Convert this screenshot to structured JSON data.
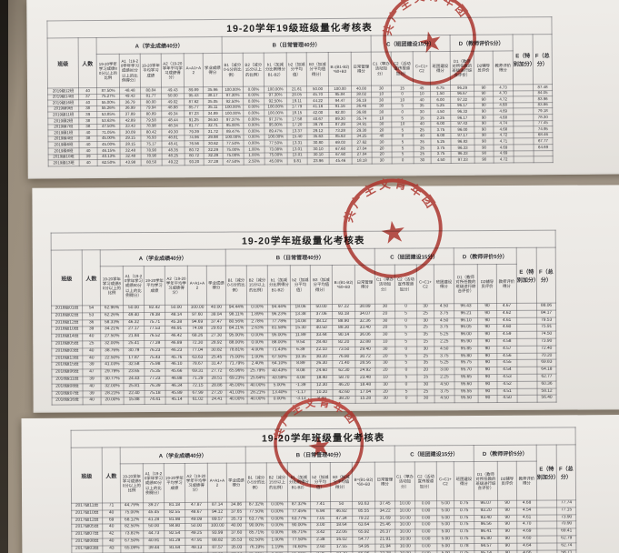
{
  "photo": {
    "background_color": "#a99d8c",
    "paper_color": "#edebe7",
    "stamp_red": "#b5322a"
  },
  "stamp_text": "共产主义青年团",
  "stamp_star": "★",
  "table_template": {
    "class_col": "班级",
    "count_col": "人数",
    "groups": [
      {
        "label": "A（学业成绩40分）",
        "cols": [
          "19-20学年学习成绩80分以上的比例",
          "A1（19-20学年学习成绩80分以上的比例得分）",
          "19-20学年平均学习成绩",
          "A2（19-20学年平均学习成绩得分）",
          "A=A1+A2",
          "学业成绩得分"
        ]
      },
      {
        "label": "B（日常管理40分）",
        "cols": [
          "B1（减分0-5分的比例）",
          "B2（减分15分以上的比例）",
          "b1（加减分比例得分B1-B2）",
          "b2（加减分平均值）",
          "B3（加减分平均值得分）",
          "B=(B1-B2)*60+B3",
          "日常管理得分"
        ]
      },
      {
        "label": "C（班团建设15分）",
        "cols": [
          "C1（举办活动加分）",
          "C2（活动宣传报道加分）",
          "C=C1+C2",
          "班团建设得分"
        ]
      },
      {
        "label": "D（教师评价5分）",
        "cols": [
          "D1（教师对所任教的班级进行综合评价）",
          "D2辅导员评价",
          "教师评价得分"
        ]
      }
    ],
    "colE": "E（特别加分）",
    "colF": "F（总分）"
  },
  "tables": [
    {
      "title": "19-20学年19级班级量化考核表",
      "rows": [
        [
          "2019级12班",
          "40",
          "87.50%",
          "48.48",
          "80.84",
          "49.43",
          "89.89",
          "35.96",
          "100.00%",
          "0.00%",
          "100.00%",
          "21.61",
          "50.00",
          "100.00",
          "40.00",
          "30",
          "15",
          "45",
          "6.75",
          "96.29",
          "90",
          "4.73",
          "",
          "87.48"
        ],
        [
          "2019级14班",
          "37",
          "75.27%",
          "49.43",
          "81.77",
          "50.00",
          "95.43",
          "38.17",
          "97.30%",
          "0.00%",
          "97.30%",
          "20.05",
          "45.70",
          "95.84",
          "38.02",
          "10",
          "0",
          "10",
          "1.50",
          "96.67",
          "90",
          "4.70",
          "",
          "84.05"
        ],
        [
          "2019级16班",
          "40",
          "55.00%",
          "36.79",
          "80.00",
          "49.02",
          "87.62",
          "35.05",
          "92.50%",
          "0.00%",
          "92.50%",
          "19.11",
          "44.22",
          "94.47",
          "36.19",
          "30",
          "10",
          "40",
          "6.00",
          "97.22",
          "90",
          "4.72",
          "",
          "83.96"
        ],
        [
          "2019级9班",
          "38",
          "55.26%",
          "36.99",
          "79.94",
          "48.88",
          "85.77",
          "35.11",
          "100.00%",
          "0.00%",
          "100.00%",
          "17.79",
          "41.16",
          "91.16",
          "36.46",
          "30",
          "5",
          "35",
          "5.25",
          "96.17",
          "90",
          "4.68",
          "",
          "83.86"
        ],
        [
          "2019级11班",
          "39",
          "53.85%",
          "37.89",
          "80.89",
          "49.34",
          "87.23",
          "34.89",
          "100.00%",
          "0.00%",
          "100.00%",
          "18.15",
          "42.00",
          "92.00",
          "36.80",
          "30",
          "0",
          "30",
          "4.50",
          "96.33",
          "90",
          "4.69",
          "",
          "79.18"
        ],
        [
          "2019级2班",
          "38",
          "53.63%",
          "42.89",
          "79.58",
          "48.44",
          "91.25",
          "36.50",
          "97.37%",
          "0.00%",
          "97.37%",
          "17.58",
          "40.67",
          "89.30",
          "35.74",
          "10",
          "5",
          "15",
          "2.25",
          "96.17",
          "90",
          "4.68",
          "",
          "78.30"
        ],
        [
          "2019级7班",
          "38",
          "47.50%",
          "33.43",
          "78.98",
          "48.34",
          "81.77",
          "32.71",
          "95.00%",
          "0.00%",
          "95.00%",
          "17.20",
          "39.78",
          "87.29",
          "34.91",
          "30",
          "10",
          "40",
          "6.00",
          "97.43",
          "90",
          "4.74",
          "",
          "77.45"
        ],
        [
          "2019级1班",
          "40",
          "71.05%",
          "30.09",
          "80.42",
          "49.30",
          "79.39",
          "31.72",
          "89.47%",
          "0.00%",
          "89.47%",
          "13.37",
          "29.12",
          "73.28",
          "29.30",
          "20",
          "5",
          "25",
          "3.75",
          "96.00",
          "90",
          "4.68",
          "",
          "74.95"
        ],
        [
          "2019级4班",
          "38",
          "45.00%",
          "29.15",
          "76.93",
          "48.81",
          "74.96",
          "29.98",
          "100.00%",
          "0.00%",
          "100.00%",
          "15.40",
          "35.63",
          "85.63",
          "34.25",
          "40",
          "0",
          "40",
          "6.00",
          "97.17",
          "90",
          "4.72",
          "",
          "68.46"
        ],
        [
          "2019级6班",
          "40",
          "45.00%",
          "28.15",
          "75.17",
          "48.41",
          "76.56",
          "30.62",
          "77.50%",
          "0.00%",
          "77.50%",
          "13.31",
          "30.80",
          "69.03",
          "27.62",
          "30",
          "5",
          "35",
          "5.25",
          "96.83",
          "90",
          "4.71",
          "",
          "67.77"
        ],
        [
          "2019级8班",
          "40",
          "46.15%",
          "32.48",
          "78.90",
          "48.35",
          "80.72",
          "32.29",
          "75.00%",
          "1.00%",
          "73.08%",
          "13.01",
          "30.10",
          "67.60",
          "27.04",
          "20",
          "5",
          "25",
          "3.75",
          "96.33",
          "90",
          "4.69",
          "",
          "64.69"
        ],
        [
          "2019级10班",
          "39",
          "40.13%",
          "32.48",
          "78.90",
          "48.25",
          "80.72",
          "32.29",
          "75.00%",
          "1.00%",
          "75.00%",
          "13.01",
          "30.10",
          "67.60",
          "27.04",
          "20",
          "5",
          "25",
          "3.75",
          "96.33",
          "90",
          "4.69",
          "",
          ""
        ],
        [
          "2019级13班",
          "40",
          "62.50%",
          "43.98",
          "80.50",
          "49.22",
          "93.20",
          "37.28",
          "47.50%",
          "2.50%",
          "45.00%",
          "9.81",
          "23.96",
          "45.46",
          "18.18",
          "30",
          "0",
          "30",
          "4.50",
          "97.33",
          "90",
          "4.72",
          "",
          ""
        ]
      ]
    },
    {
      "title": "19-20学年班级量化考核表",
      "rows": [
        [
          "2018级01班",
          "54",
          "62.96%",
          "50.00",
          "82.42",
          "50.00",
          "100.00",
          "40.00",
          "94.44%",
          "0.00%",
          "94.44%",
          "18.06",
          "50.00",
          "97.22",
          "38.89",
          "30",
          "0",
          "30",
          "4.50",
          "96.43",
          "90",
          "4.67",
          "",
          "88.06"
        ],
        [
          "2018级02班",
          "53",
          "62.26%",
          "49.40",
          "79.38",
          "48.14",
          "97.60",
          "39.04",
          "98.11%",
          "1.89%",
          "96.23%",
          "13.38",
          "37.06",
          "93.18",
          "34.07",
          "20",
          "5",
          "25",
          "3.75",
          "96.21",
          "90",
          "4.62",
          "",
          "84.17"
        ],
        [
          "2018级12班",
          "36",
          "58.33%",
          "46.32",
          "75.71",
          "45.38",
          "94.69",
          "37.47",
          "80.56%",
          "2.78%",
          "77.78%",
          "14.08",
          "38.12",
          "88.90",
          "32.36",
          "30",
          "0",
          "30",
          "4.50",
          "96.10",
          "90",
          "4.61",
          "",
          "79.53"
        ],
        [
          "2018级10班",
          "39",
          "34.21%",
          "27.17",
          "77.53",
          "46.91",
          "74.08",
          "29.63",
          "84.21%",
          "2.63%",
          "81.58%",
          "15.30",
          "40.50",
          "88.30",
          "33.40",
          "20",
          "5",
          "25",
          "3.75",
          "96.05",
          "90",
          "4.60",
          "",
          "75.91"
        ],
        [
          "2018级14班",
          "40",
          "27.50%",
          "21.84",
          "76.52",
          "46.42",
          "68.26",
          "27.30",
          "95.00%",
          "0.00%",
          "95.00%",
          "11.89",
          "33.44",
          "90.14",
          "36.06",
          "30",
          "5",
          "35",
          "5.25",
          "96.00",
          "90",
          "4.59",
          "",
          "74.50"
        ],
        [
          "2018级05班",
          "25",
          "32.00%",
          "25.41",
          "77.39",
          "46.89",
          "72.30",
          "28.92",
          "88.00%",
          "0.00%",
          "88.00%",
          "9.54",
          "28.40",
          "82.20",
          "32.88",
          "10",
          "5",
          "15",
          "2.25",
          "95.90",
          "90",
          "4.58",
          "",
          "73.90"
        ],
        [
          "2018级03班",
          "40",
          "38.76%",
          "30.79",
          "76.23",
          "46.23",
          "77.04",
          "30.82",
          "78.81%",
          "4.00%",
          "71.43%",
          "6.39",
          "22.10",
          "73.50",
          "29.40",
          "30",
          "0",
          "30",
          "4.50",
          "95.85",
          "90",
          "4.57",
          "",
          "72.40"
        ],
        [
          "2018级13班",
          "40",
          "22.50%",
          "17.87",
          "75.43",
          "45.76",
          "63.63",
          "25.45",
          "75.00%",
          "1.00%",
          "67.50%",
          "10.35",
          "30.20",
          "76.80",
          "30.72",
          "20",
          "5",
          "25",
          "3.75",
          "95.80",
          "90",
          "4.56",
          "",
          "70.20"
        ],
        [
          "2018级15班",
          "39",
          "41.03%",
          "32.58",
          "75.98",
          "46.10",
          "78.67",
          "31.47",
          "71.79%",
          "2.40%",
          "64.10%",
          "8.89",
          "26.30",
          "71.40",
          "28.56",
          "30",
          "5",
          "35",
          "5.25",
          "95.75",
          "90",
          "4.55",
          "",
          "69.83"
        ],
        [
          "2018级06班",
          "47",
          "29.79%",
          "23.65",
          "75.35",
          "45.66",
          "69.31",
          "27.72",
          "65.96%",
          "25.79%",
          "40.43%",
          "8.08",
          "24.60",
          "62.30",
          "24.92",
          "20",
          "0",
          "20",
          "3.00",
          "95.70",
          "90",
          "4.54",
          "",
          "64.18"
        ],
        [
          "2018级11班",
          "39",
          "30.77%",
          "24.43",
          "77.23",
          "46.88",
          "71.29",
          "28.51",
          "69.23%",
          "25.64%",
          "43.59%",
          "4.08",
          "18.40",
          "58.70",
          "23.48",
          "10",
          "5",
          "15",
          "2.25",
          "95.65",
          "90",
          "4.53",
          "",
          "62.77"
        ],
        [
          "2018级08班",
          "40",
          "32.00%",
          "25.81",
          "76.39",
          "46.34",
          "72.15",
          "28.86",
          "45.00%",
          "40.00%",
          "5.00%",
          "-1.39",
          "12.30",
          "46.20",
          "18.48",
          "30",
          "0",
          "30",
          "4.50",
          "95.60",
          "90",
          "4.52",
          "",
          "60.36"
        ],
        [
          "2018级07班",
          "39",
          "28.21%",
          "22.40",
          "75.18",
          "45.89",
          "67.99",
          "27.20",
          "41.03%",
          "28.21%",
          "13.40%",
          "-1.17",
          "10.20",
          "42.60",
          "17.04",
          "20",
          "5",
          "25",
          "3.75",
          "95.55",
          "90",
          "4.51",
          "",
          "58.12"
        ],
        [
          "2018级16班",
          "40",
          "20.00%",
          "15.88",
          "74.41",
          "45.14",
          "61.02",
          "24.41",
          "40.00%",
          "40.00%",
          "0.00%",
          "-3.13",
          "8.40",
          "38.20",
          "15.28",
          "30",
          "0",
          "30",
          "4.50",
          "95.50",
          "90",
          "4.50",
          "",
          "56.40"
        ]
      ]
    },
    {
      "title": "19-20学年班级量化考核表",
      "rows": [
        [
          "2017级11班",
          "71",
          "44.79%",
          "39.27",
          "81.18",
          "47.87",
          "87.14",
          "34.86",
          "87.32%",
          "0.00%",
          "87.32%",
          "7.41",
          "50",
          "93.63",
          "37.45",
          "10.00",
          "0.00",
          "5.00",
          "0.75",
          "96.07",
          "90",
          "4.68",
          "",
          "77.74"
        ],
        [
          "2017级10班",
          "40",
          "75.00%",
          "45.45",
          "82.55",
          "48.67",
          "94.12",
          "37.65",
          "77.50%",
          "0.00%",
          "77.45%",
          "6.94",
          "46.82",
          "85.55",
          "34.22",
          "10.00",
          "0.00",
          "5.00",
          "0.75",
          "93.20",
          "90",
          "4.54",
          "",
          "77.15"
        ],
        [
          "2017级12班",
          "69",
          "68.12%",
          "41.28",
          "81.98",
          "49.09",
          "89.57",
          "35.73",
          "63.77%",
          "0.00%",
          "63.77%",
          "7.01",
          "47.34",
          "79.22",
          "31.69",
          "10.00",
          "0.00",
          "5.00",
          "0.75",
          "93.40",
          "90",
          "4.61",
          "",
          "73.90"
        ],
        [
          "2017级05班",
          "40",
          "82.50%",
          "50.00",
          "84.80",
          "50.00",
          "100.00",
          "40.00",
          "90.00%",
          "0.00%",
          "90.00%",
          "3.00",
          "18.64",
          "63.64",
          "25.46",
          "10.00",
          "0.00",
          "5.00",
          "0.75",
          "96.56",
          "90",
          "4.70",
          "",
          "70.90"
        ],
        [
          "2017级07班",
          "42",
          "73.81%",
          "44.73",
          "82.54",
          "49.25",
          "93.99",
          "37.60",
          "85.71%",
          "0.00%",
          "85.71%",
          "3.42",
          "22.06",
          "65.92",
          "26.37",
          "10.00",
          "0.00",
          "5.00",
          "0.75",
          "96.41",
          "90",
          "4.69",
          "",
          "69.41"
        ],
        [
          "2017级08班",
          "40",
          "67.50%",
          "40.91",
          "81.29",
          "47.91",
          "88.82",
          "35.53",
          "82.50%",
          "1.00%",
          "77.50%",
          "2.38",
          "16.02",
          "54.77",
          "21.91",
          "10.00",
          "0.00",
          "5.00",
          "0.75",
          "95.80",
          "90",
          "4.60",
          "",
          "62.79"
        ],
        [
          "2017级03班",
          "43",
          "65.09%",
          "39.44",
          "81.64",
          "49.13",
          "87.57",
          "35.03",
          "76.19%",
          "1.19%",
          "74.60%",
          "2.60",
          "17.55",
          "54.95",
          "21.94",
          "10.00",
          "0.00",
          "5.00",
          "0.78",
          "94.57",
          "90",
          "4.64",
          "",
          "62.74"
        ],
        [
          "2017级04班",
          "44",
          "43.19%",
          "26.17",
          "79.21",
          "46.76",
          "72.93",
          "29.17",
          "65.91%",
          "0.00%",
          "65.91%",
          "3.36",
          "22.70",
          "55.96",
          "22.38",
          "10.00",
          "0.00",
          "5.00",
          "0.75",
          "95.14",
          "90",
          "4.66",
          "",
          "58.71"
        ]
      ]
    }
  ]
}
